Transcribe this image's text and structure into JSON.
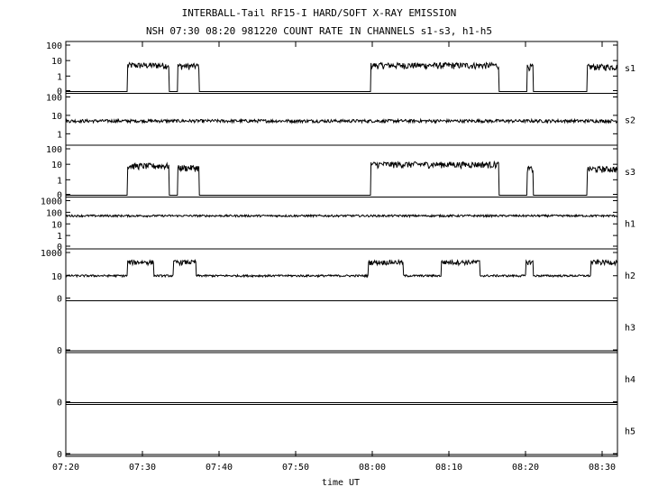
{
  "chart_data": {
    "type": "line",
    "title": "INTERBALL-Tail RF15-I HARD/SOFT X-RAY EMISSION",
    "subtitle": "NSH 07:30 08:20 981220  COUNT RATE IN CHANNELS s1-s3, h1-h5",
    "xlabel": "time UT",
    "x_ticks": [
      "07:20",
      "07:30",
      "07:40",
      "07:50",
      "08:00",
      "08:10",
      "08:20",
      "08:30"
    ],
    "x_tick_minutes": [
      440,
      450,
      460,
      470,
      480,
      490,
      500,
      510
    ],
    "xlim_minutes": [
      440,
      512
    ],
    "y_scale": "log",
    "panels": [
      {
        "name": "s1",
        "y_ticks": [
          "100",
          "10",
          "1",
          "0"
        ],
        "y_tick_values": [
          100,
          10,
          1,
          0
        ],
        "ylim": [
          0,
          100
        ],
        "baseline": 0,
        "bursts": [
          [
            448.0,
            453.5,
            5
          ],
          [
            454.6,
            457.4,
            4.5
          ],
          [
            479.8,
            496.5,
            5
          ],
          [
            500.2,
            501.0,
            4
          ],
          [
            508.0,
            512.0,
            4
          ]
        ]
      },
      {
        "name": "s2",
        "y_ticks": [
          "100",
          "10",
          "1"
        ],
        "y_tick_values": [
          100,
          10,
          1
        ],
        "ylim": [
          0.3,
          100
        ],
        "baseline": 5,
        "bursts": []
      },
      {
        "name": "s3",
        "y_ticks": [
          "100",
          "10",
          "1",
          "0"
        ],
        "y_tick_values": [
          100,
          10,
          1,
          0
        ],
        "ylim": [
          0,
          100
        ],
        "baseline": 0,
        "bursts": [
          [
            448.0,
            453.5,
            8
          ],
          [
            454.6,
            457.4,
            6
          ],
          [
            479.8,
            496.5,
            10
          ],
          [
            500.2,
            501.0,
            5
          ],
          [
            508.0,
            512.0,
            5
          ]
        ]
      },
      {
        "name": "h1",
        "y_ticks": [
          "1000",
          "100",
          "10",
          "1",
          "0"
        ],
        "y_tick_values": [
          1000,
          100,
          10,
          1,
          0
        ],
        "ylim": [
          0,
          1000
        ],
        "baseline": 50,
        "bursts": []
      },
      {
        "name": "h2",
        "y_ticks": [
          "1000",
          "10",
          "0"
        ],
        "y_tick_values": [
          1000,
          10,
          0
        ],
        "ylim": [
          0,
          1000
        ],
        "baseline": 10,
        "bursts": [
          [
            448.0,
            451.5,
            150
          ],
          [
            454.0,
            457.0,
            150
          ],
          [
            479.5,
            484.0,
            150
          ],
          [
            489.0,
            494.0,
            150
          ],
          [
            500.0,
            501.0,
            150
          ],
          [
            508.5,
            512.0,
            150
          ]
        ]
      },
      {
        "name": "h3",
        "y_ticks": [
          "0"
        ],
        "y_tick_values": [
          0
        ],
        "ylim": [
          0,
          1
        ],
        "baseline": 0,
        "bursts": []
      },
      {
        "name": "h4",
        "y_ticks": [
          "0"
        ],
        "y_tick_values": [
          0
        ],
        "ylim": [
          0,
          1
        ],
        "baseline": 0,
        "bursts": []
      },
      {
        "name": "h5",
        "y_ticks": [
          "0"
        ],
        "y_tick_values": [
          0
        ],
        "ylim": [
          0,
          1
        ],
        "baseline": 0,
        "bursts": []
      }
    ],
    "grid": false,
    "legend": "none"
  }
}
